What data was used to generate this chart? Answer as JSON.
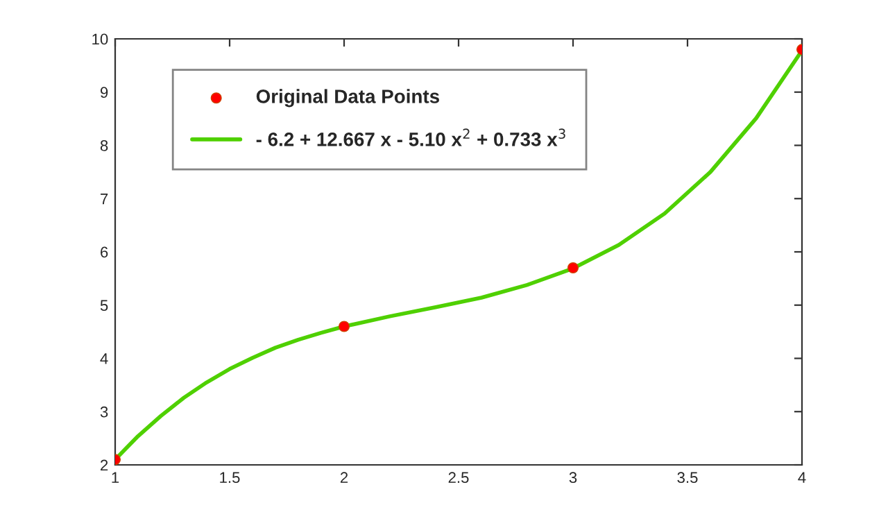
{
  "chart_data": {
    "type": "scatter",
    "xlim": [
      1,
      4
    ],
    "ylim": [
      2,
      10
    ],
    "xticks": [
      1,
      1.5,
      2,
      2.5,
      3,
      3.5,
      4
    ],
    "yticks": [
      2,
      3,
      4,
      5,
      6,
      7,
      8,
      9,
      10
    ],
    "grid": false,
    "legend": "top left",
    "series": [
      {
        "name": "Original Data Points",
        "marker": "circle",
        "color": "#ff0000",
        "x": [
          1,
          2,
          3,
          4
        ],
        "values": [
          2.1,
          4.6,
          5.7,
          9.8
        ]
      },
      {
        "name": "- 6.2 + 12.667 x - 5.10 x$^{2}$ + 0.733 x$^{3}$",
        "type": "line",
        "marker": "none",
        "line_style": "solid",
        "color": "#4fd000",
        "x": [
          1,
          1.1,
          1.2,
          1.3,
          1.4,
          1.5,
          1.6,
          1.7,
          1.8,
          1.9,
          2,
          2.2,
          2.4,
          2.6,
          2.8,
          3,
          3.2,
          3.4,
          3.6,
          3.8,
          4
        ],
        "values": [
          2.1,
          2.54,
          2.92,
          3.26,
          3.55,
          3.8,
          4.01,
          4.2,
          4.35,
          4.48,
          4.6,
          4.79,
          4.96,
          5.14,
          5.38,
          5.69,
          6.13,
          6.72,
          7.5,
          8.51,
          9.78
        ]
      }
    ]
  }
}
